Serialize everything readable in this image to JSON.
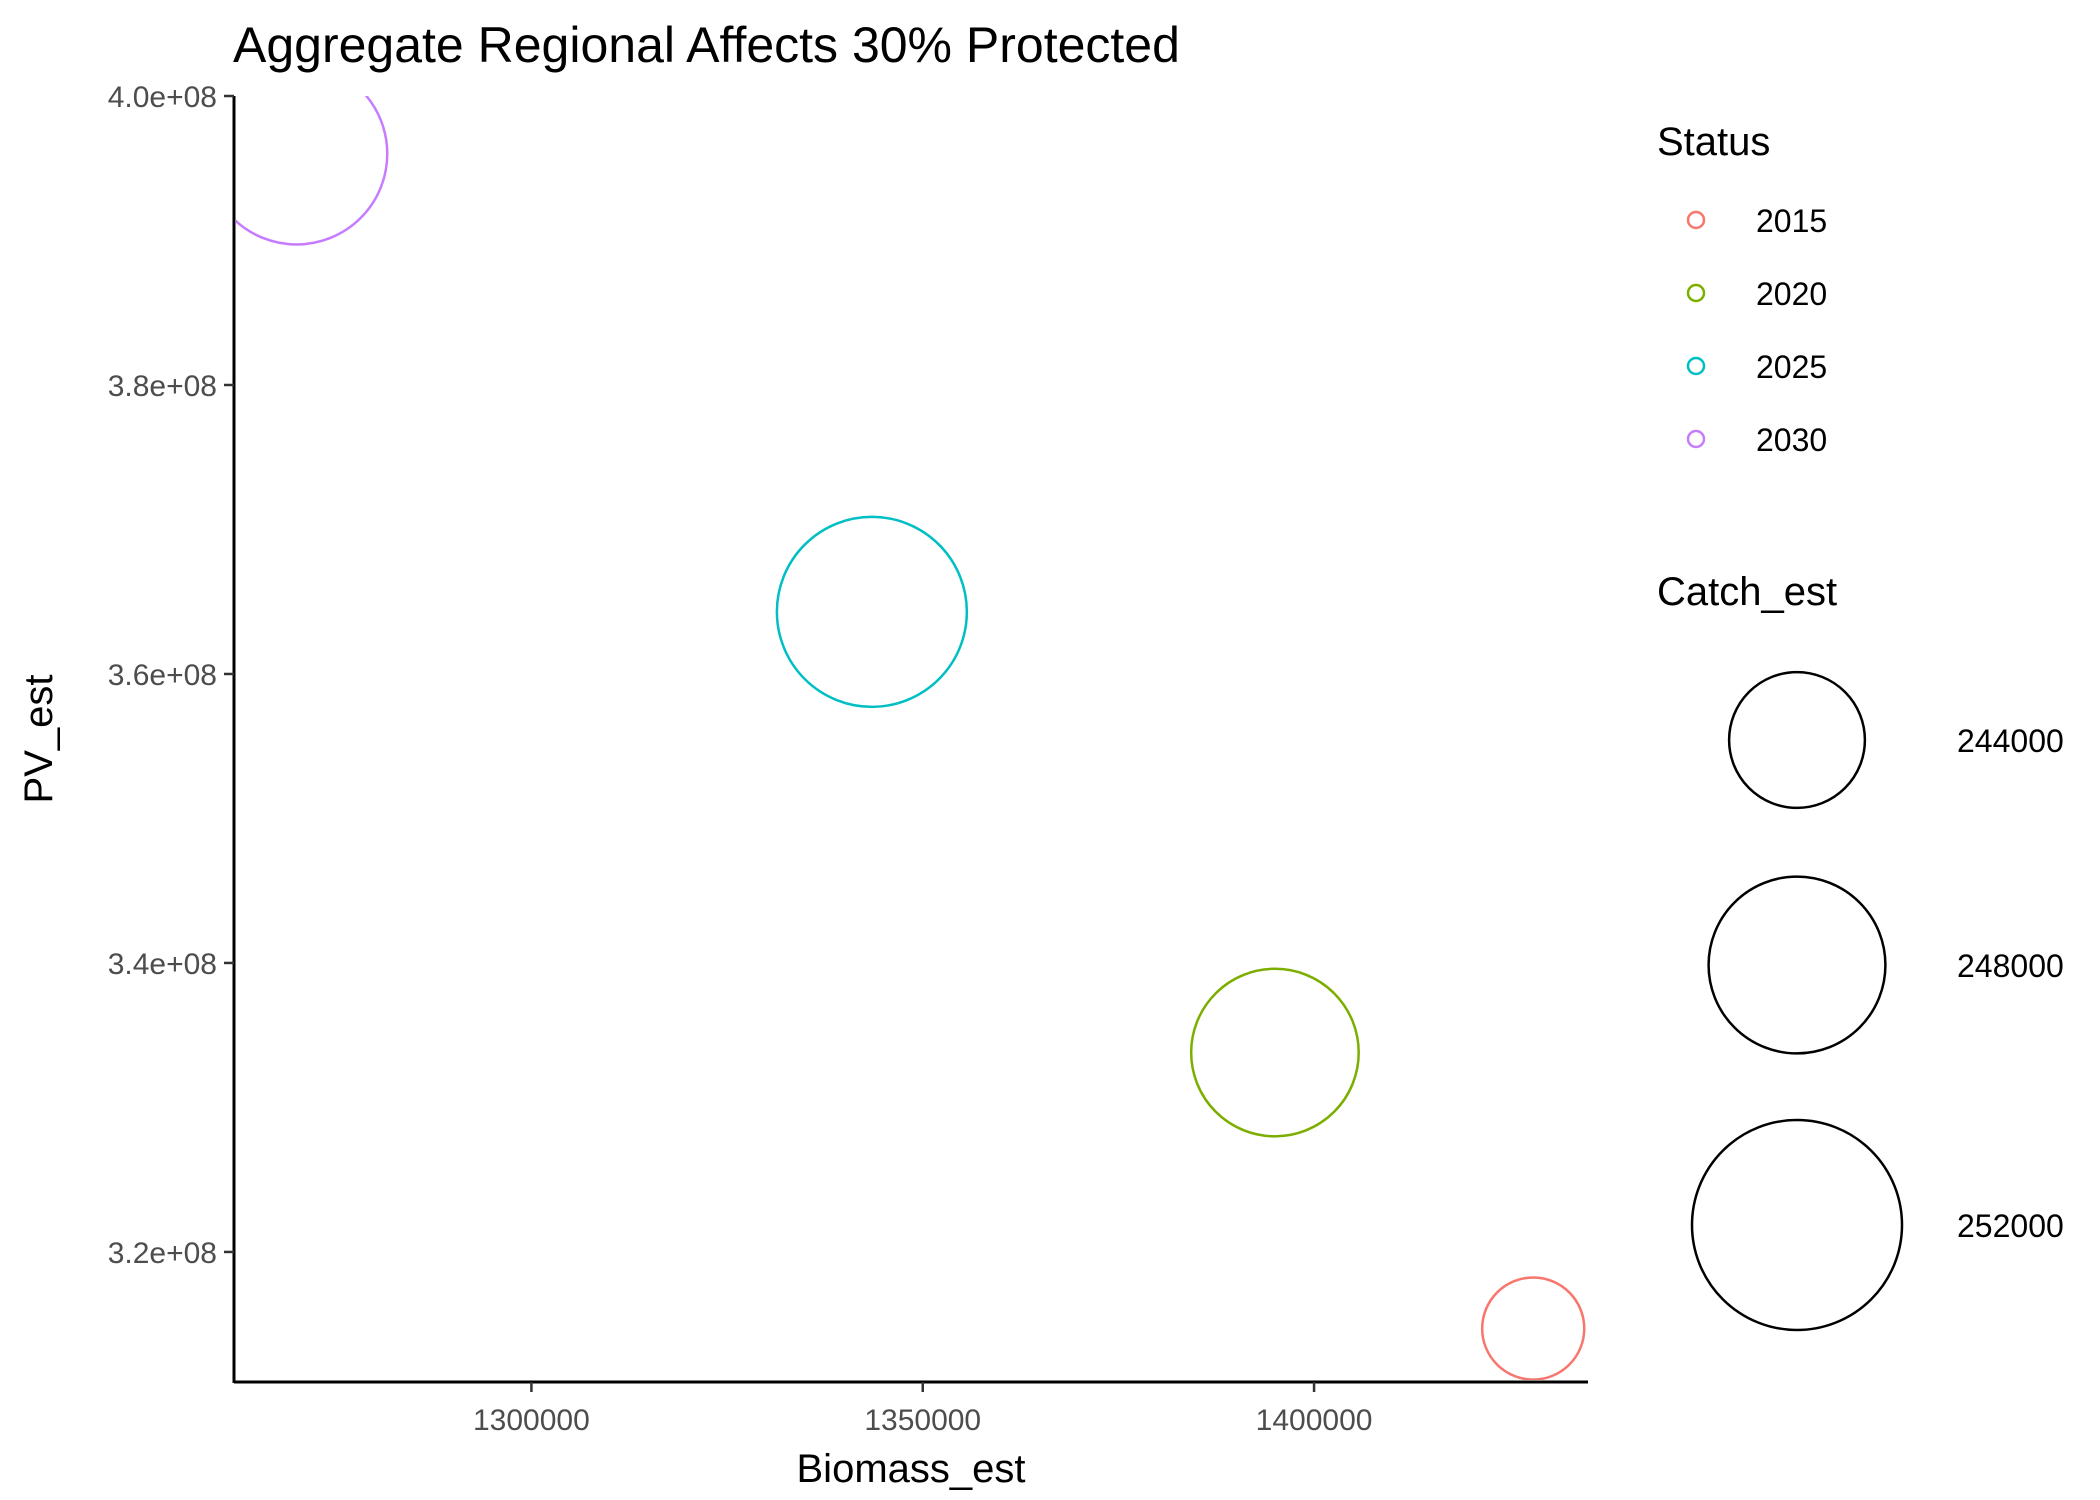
{
  "chart_data": {
    "type": "scatter",
    "title": "Aggregate Regional Affects 30% Protected",
    "xlabel": "Biomass_est",
    "ylabel": "PV_est",
    "xlim": [
      1262000,
      1435000
    ],
    "ylim": [
      311000000,
      400000000
    ],
    "x_ticks": [
      1300000,
      1350000,
      1400000
    ],
    "x_tick_labels": [
      "1300000",
      "1350000",
      "1400000"
    ],
    "y_ticks": [
      320000000,
      340000000,
      360000000,
      380000000,
      400000000
    ],
    "y_tick_labels": [
      "3.2e+08",
      "3.4e+08",
      "3.6e+08",
      "3.8e+08",
      "4.0e+08"
    ],
    "grid": false,
    "size_variable": "Catch_est",
    "series": [
      {
        "name": "2015",
        "color": "#F8766D",
        "x": 1428000,
        "y": 314700000,
        "size": 241500
      },
      {
        "name": "2020",
        "color": "#7CAE00",
        "x": 1395000,
        "y": 333800000,
        "size": 247000
      },
      {
        "name": "2025",
        "color": "#00BFC4",
        "x": 1343500,
        "y": 364300000,
        "size": 249500
      },
      {
        "name": "2030",
        "color": "#C77CFF",
        "x": 1270000,
        "y": 396000000,
        "size": 248500
      }
    ],
    "legend": {
      "placement": "right",
      "color_title": "Status",
      "color_items": [
        {
          "label": "2015",
          "color": "#F8766D"
        },
        {
          "label": "2020",
          "color": "#7CAE00"
        },
        {
          "label": "2025",
          "color": "#00BFC4"
        },
        {
          "label": "2030",
          "color": "#C77CFF"
        }
      ],
      "size_title": "Catch_est",
      "size_items": [
        {
          "label": "244000",
          "value": 244000
        },
        {
          "label": "248000",
          "value": 248000
        },
        {
          "label": "252000",
          "value": 252000
        }
      ]
    }
  }
}
